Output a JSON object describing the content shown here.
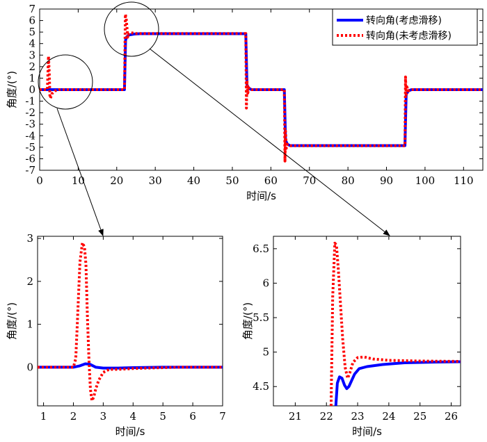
{
  "chart_data": [
    {
      "type": "line",
      "panel": "main",
      "xlabel": "时间/s",
      "ylabel": "角度/(°)",
      "xlim": [
        0,
        115
      ],
      "ylim": [
        -7,
        7
      ],
      "xticks": [
        0,
        10,
        20,
        30,
        40,
        50,
        60,
        70,
        80,
        90,
        100,
        110
      ],
      "yticks": [
        -7,
        -6,
        -5,
        -4,
        -3,
        -2,
        -1,
        0,
        1,
        2,
        3,
        4,
        5,
        6,
        7
      ],
      "legend": {
        "placement": "top-right",
        "entries": [
          "转向角(考虑滑移)",
          "转向角(未考虑滑移)"
        ]
      },
      "series": [
        {
          "name": "转向角(考虑滑移)",
          "color": "#0000ff",
          "style": "solid",
          "x": [
            0,
            22.0,
            22.3,
            22.6,
            23.2,
            24.5,
            26,
            53.5,
            53.8,
            54.3,
            55,
            63.5,
            63.8,
            64.3,
            65,
            94.8,
            95.1,
            95.7,
            96.5,
            115
          ],
          "y": [
            0,
            0,
            4.3,
            4.6,
            4.75,
            4.83,
            4.86,
            4.86,
            0.4,
            0.1,
            0,
            0,
            -4.4,
            -4.75,
            -4.86,
            -4.86,
            -0.4,
            -0.1,
            0,
            0
          ]
        },
        {
          "name": "转向角(未考虑滑移)",
          "color": "#ff0000",
          "style": "dotted",
          "x": [
            0,
            2.0,
            2.3,
            2.5,
            2.65,
            2.8,
            3.2,
            4.0,
            5.0,
            22.0,
            22.25,
            22.45,
            22.65,
            22.85,
            23.1,
            23.6,
            25,
            53.5,
            53.65,
            53.8,
            54.0,
            54.3,
            55,
            63.5,
            63.65,
            63.8,
            64.0,
            64.3,
            65,
            94.8,
            94.95,
            95.1,
            95.3,
            95.6,
            96.5,
            115
          ],
          "y": [
            0,
            0,
            2.9,
            1.5,
            -0.5,
            -0.75,
            -0.35,
            -0.1,
            0,
            0,
            6.55,
            6.2,
            5.4,
            4.55,
            4.85,
            4.95,
            4.87,
            4.87,
            -1.6,
            0.8,
            -0.3,
            0.15,
            0,
            0,
            -6.2,
            -3.6,
            -5.1,
            -4.75,
            -4.87,
            -4.87,
            1.1,
            -0.6,
            0.25,
            -0.1,
            0,
            0
          ]
        }
      ]
    },
    {
      "type": "line",
      "panel": "zoom-left",
      "xlabel": "时间/s",
      "ylabel": "角度/(°)",
      "xlim": [
        0.8,
        7
      ],
      "ylim": [
        -0.9,
        3.05
      ],
      "xticks": [
        1,
        2,
        3,
        4,
        5,
        6,
        7
      ],
      "yticks": [
        0,
        1,
        2,
        3
      ],
      "series": [
        {
          "name": "转向角(考虑滑移)",
          "color": "#0000ff",
          "style": "solid",
          "x": [
            0.8,
            2.0,
            2.2,
            2.4,
            2.55,
            2.75,
            3.0,
            3.5,
            4.0,
            5.0,
            7.0
          ],
          "y": [
            0,
            0,
            0.03,
            0.08,
            0.07,
            0.0,
            -0.02,
            -0.02,
            -0.01,
            0,
            0
          ]
        },
        {
          "name": "转向角(未考虑滑移)",
          "color": "#ff0000",
          "style": "dotted",
          "x": [
            0.8,
            2.0,
            2.08,
            2.15,
            2.22,
            2.3,
            2.37,
            2.42,
            2.47,
            2.52,
            2.57,
            2.62,
            2.68,
            2.75,
            2.85,
            3.0,
            3.2,
            3.5,
            4.0,
            4.5,
            5.0,
            5.5,
            7.0
          ],
          "y": [
            0,
            0,
            0.2,
            1.3,
            2.45,
            2.9,
            2.8,
            2.4,
            1.2,
            0.2,
            -0.5,
            -0.78,
            -0.7,
            -0.5,
            -0.3,
            -0.12,
            -0.05,
            -0.05,
            -0.03,
            -0.02,
            -0.01,
            0,
            0
          ]
        }
      ]
    },
    {
      "type": "line",
      "panel": "zoom-right",
      "xlabel": "时间/s",
      "ylabel": "角度/(°)",
      "xlim": [
        20.3,
        26.3
      ],
      "ylim": [
        4.22,
        6.68
      ],
      "xticks": [
        21,
        22,
        23,
        24,
        25,
        26
      ],
      "yticks": [
        4.5,
        5,
        5.5,
        6,
        6.5
      ],
      "series": [
        {
          "name": "转向角(考虑滑移)",
          "color": "#0000ff",
          "style": "solid",
          "x": [
            22.3,
            22.35,
            22.42,
            22.5,
            22.58,
            22.65,
            22.72,
            22.8,
            22.9,
            23.05,
            23.3,
            23.8,
            24.5,
            25.0,
            25.5,
            26.3
          ],
          "y": [
            4.22,
            4.55,
            4.64,
            4.62,
            4.52,
            4.47,
            4.5,
            4.58,
            4.68,
            4.76,
            4.79,
            4.82,
            4.845,
            4.85,
            4.855,
            4.86
          ]
        },
        {
          "name": "转向角(未考虑滑移)",
          "color": "#ff0000",
          "style": "dotted",
          "x": [
            22.15,
            22.2,
            22.27,
            22.32,
            22.38,
            22.45,
            22.52,
            22.6,
            22.68,
            22.75,
            22.85,
            23.0,
            23.2,
            23.5,
            24.0,
            25.0,
            26.3
          ],
          "y": [
            4.22,
            5.8,
            6.58,
            6.55,
            6.2,
            5.7,
            5.2,
            4.78,
            4.62,
            4.7,
            4.85,
            4.92,
            4.93,
            4.9,
            4.88,
            4.87,
            4.865
          ]
        }
      ]
    }
  ]
}
